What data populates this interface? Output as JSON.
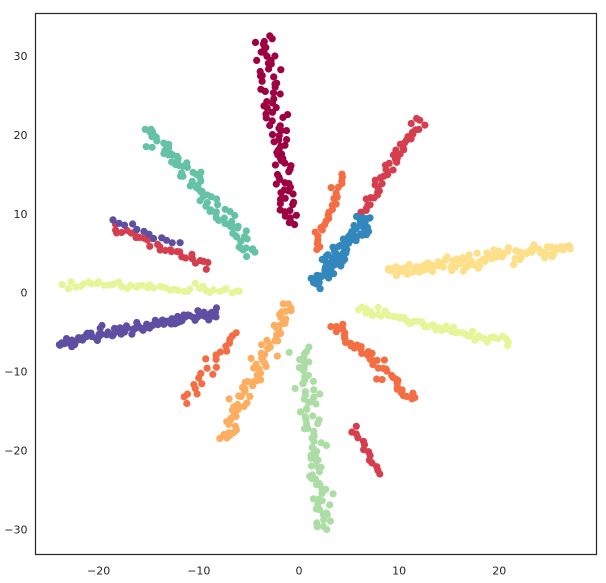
{
  "chart_data": {
    "type": "scatter",
    "title": "",
    "xlabel": "",
    "ylabel": "",
    "xlim": [
      -26.3,
      29.7
    ],
    "ylim": [
      -33.2,
      35.4
    ],
    "xticks": [
      -20,
      -10,
      0,
      10,
      20
    ],
    "yticks": [
      -30,
      -20,
      -10,
      0,
      10,
      20,
      30
    ],
    "grid": false,
    "legend": "none",
    "series": [
      {
        "color": "#9e0142",
        "start": [
          -1.0,
          8.5
        ],
        "end": [
          -3.5,
          32.5
        ],
        "count": 90,
        "spread": 0.55
      },
      {
        "color": "#d53e4f",
        "start": [
          6.2,
          10.0
        ],
        "end": [
          12.2,
          22.0
        ],
        "count": 45,
        "spread": 0.3
      },
      {
        "color": "#d53e4f",
        "start": [
          -9.0,
          3.3
        ],
        "end": [
          -18.5,
          8.4
        ],
        "count": 30,
        "spread": 0.3
      },
      {
        "color": "#d53e4f",
        "start": [
          5.5,
          -17.0
        ],
        "end": [
          8.0,
          -23.0
        ],
        "count": 14,
        "spread": 0.2
      },
      {
        "color": "#f46d43",
        "start": [
          1.5,
          5.5
        ],
        "end": [
          4.5,
          15.0
        ],
        "count": 25,
        "spread": 0.25
      },
      {
        "color": "#f46d43",
        "start": [
          3.5,
          -4.0
        ],
        "end": [
          11.5,
          -13.5
        ],
        "count": 45,
        "spread": 0.35
      },
      {
        "color": "#f46d43",
        "start": [
          -6.5,
          -5.0
        ],
        "end": [
          -11.5,
          -13.8
        ],
        "count": 22,
        "spread": 0.3
      },
      {
        "color": "#fdae61",
        "start": [
          -1.0,
          -1.5
        ],
        "end": [
          -7.5,
          -18.5
        ],
        "count": 75,
        "spread": 0.45
      },
      {
        "color": "#fee08b",
        "start": [
          9.0,
          2.5
        ],
        "end": [
          27.0,
          5.7
        ],
        "count": 110,
        "spread": 0.45
      },
      {
        "color": "#e6f598",
        "start": [
          6.0,
          -2.0
        ],
        "end": [
          21.0,
          -6.5
        ],
        "count": 55,
        "spread": 0.35
      },
      {
        "color": "#e6f598",
        "start": [
          -6.0,
          0.2
        ],
        "end": [
          -23.5,
          1.3
        ],
        "count": 45,
        "spread": 0.25
      },
      {
        "color": "#abdda4",
        "start": [
          0.3,
          -7.0
        ],
        "end": [
          2.6,
          -30.0
        ],
        "count": 85,
        "spread": 0.5
      },
      {
        "color": "#66c2a5",
        "start": [
          -4.5,
          5.0
        ],
        "end": [
          -15.0,
          21.0
        ],
        "count": 85,
        "spread": 0.5
      },
      {
        "color": "#3288bd",
        "start": [
          1.5,
          1.0
        ],
        "end": [
          7.0,
          9.5
        ],
        "count": 90,
        "spread": 0.45
      },
      {
        "color": "#5e4fa2",
        "start": [
          -8.0,
          -2.5
        ],
        "end": [
          -24.0,
          -6.4
        ],
        "count": 90,
        "spread": 0.4
      },
      {
        "color": "#5e4fa2",
        "start": [
          -12.0,
          6.0
        ],
        "end": [
          -18.5,
          9.2
        ],
        "count": 12,
        "spread": 0.2
      }
    ]
  }
}
